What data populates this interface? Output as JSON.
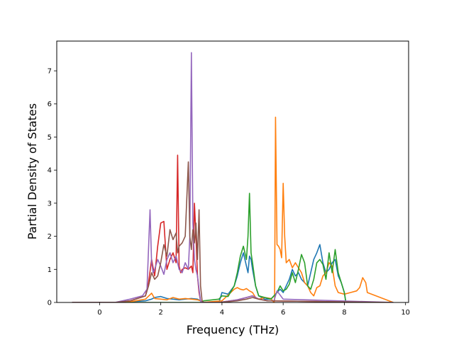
{
  "chart_data": {
    "type": "line",
    "title": "",
    "xlabel": "Frequency (THz)",
    "ylabel": "Partial Density of States",
    "xlim": [
      -1.4,
      10.1
    ],
    "ylim": [
      0,
      7.9
    ],
    "xticks": [
      0,
      2,
      4,
      6,
      8,
      10
    ],
    "yticks": [
      0,
      1,
      2,
      3,
      4,
      5,
      6,
      7
    ],
    "grid": false,
    "legend": "none",
    "series": [
      {
        "color": "#1f77b4",
        "x": [
          -0.9,
          0.5,
          1.0,
          1.5,
          1.7,
          1.8,
          2.0,
          2.2,
          2.4,
          2.6,
          2.8,
          3.0,
          3.2,
          3.3,
          3.35,
          3.9,
          4.0,
          4.2,
          4.4,
          4.5,
          4.6,
          4.7,
          4.8,
          4.85,
          4.9,
          4.95,
          5.0,
          5.1,
          5.2,
          5.4,
          5.6,
          5.7,
          5.8,
          5.9,
          6.0,
          6.1,
          6.2,
          6.3,
          6.4,
          6.5,
          6.6,
          6.7,
          6.8,
          6.9,
          7.0,
          7.1,
          7.2,
          7.3,
          7.4,
          7.5,
          7.6,
          7.7,
          7.8,
          7.9,
          8.0,
          8.05,
          8.1,
          8.5,
          9.6
        ],
        "y": [
          0,
          0,
          0.02,
          0.05,
          0.1,
          0.15,
          0.18,
          0.12,
          0.1,
          0.08,
          0.1,
          0.12,
          0.1,
          0.05,
          0,
          0,
          0.3,
          0.25,
          0.5,
          0.8,
          1.2,
          1.5,
          1.1,
          0.9,
          1.4,
          1.3,
          1.0,
          0.5,
          0.2,
          0.1,
          0.1,
          0.2,
          0.3,
          0.4,
          0.3,
          0.5,
          0.7,
          1.0,
          0.8,
          0.9,
          0.7,
          0.6,
          0.5,
          0.9,
          1.3,
          1.5,
          1.75,
          1.2,
          0.9,
          1.0,
          1.2,
          1.3,
          0.8,
          0.6,
          0.3,
          0,
          0,
          0,
          0
        ]
      },
      {
        "color": "#ff7f0e",
        "x": [
          -0.9,
          0.5,
          1.0,
          1.5,
          1.7,
          1.8,
          2.0,
          2.2,
          2.4,
          2.6,
          2.8,
          3.0,
          3.2,
          3.3,
          3.35,
          4.0,
          4.4,
          4.5,
          4.6,
          4.7,
          4.8,
          4.9,
          5.0,
          5.1,
          5.2,
          5.4,
          5.6,
          5.7,
          5.72,
          5.75,
          5.8,
          5.85,
          5.9,
          5.95,
          6.0,
          6.05,
          6.1,
          6.2,
          6.3,
          6.4,
          6.5,
          6.6,
          6.7,
          6.8,
          6.9,
          7.0,
          7.1,
          7.2,
          7.3,
          7.4,
          7.5,
          7.6,
          7.7,
          7.8,
          8.0,
          8.2,
          8.4,
          8.5,
          8.6,
          8.7,
          8.75,
          9.6
        ],
        "y": [
          0,
          0,
          0.02,
          0.1,
          0.28,
          0.12,
          0.1,
          0.08,
          0.15,
          0.1,
          0.12,
          0.1,
          0.08,
          0.05,
          0,
          0.05,
          0.4,
          0.45,
          0.4,
          0.38,
          0.42,
          0.35,
          0.3,
          0.15,
          0.1,
          0.15,
          0.12,
          0,
          0.05,
          5.6,
          1.75,
          1.7,
          1.6,
          1.35,
          3.6,
          2.0,
          1.2,
          1.3,
          1.05,
          1.2,
          1.05,
          0.9,
          0.6,
          0.5,
          0.3,
          0.2,
          0.45,
          0.5,
          0.8,
          0.9,
          1.2,
          1.1,
          0.5,
          0.3,
          0.25,
          0.3,
          0.35,
          0.45,
          0.75,
          0.6,
          0.3,
          0
        ]
      },
      {
        "color": "#2ca02c",
        "x": [
          -0.9,
          3.3,
          3.4,
          3.9,
          4.0,
          4.2,
          4.4,
          4.5,
          4.6,
          4.7,
          4.8,
          4.85,
          4.9,
          4.95,
          5.0,
          5.1,
          5.2,
          5.4,
          5.6,
          5.7,
          5.8,
          5.9,
          6.0,
          6.1,
          6.2,
          6.3,
          6.4,
          6.5,
          6.6,
          6.7,
          6.8,
          6.9,
          7.0,
          7.1,
          7.2,
          7.3,
          7.4,
          7.5,
          7.6,
          7.7,
          7.8,
          7.9,
          8.0,
          8.05,
          8.1,
          9.6
        ],
        "y": [
          0,
          0,
          0.05,
          0.1,
          0.2,
          0.18,
          0.5,
          0.9,
          1.4,
          1.7,
          1.3,
          2.0,
          3.3,
          1.5,
          1.2,
          0.5,
          0.2,
          0.15,
          0.1,
          0.2,
          0.3,
          0.5,
          0.35,
          0.4,
          0.55,
          0.9,
          0.6,
          1.0,
          1.45,
          1.2,
          0.5,
          0.4,
          0.7,
          1.2,
          1.3,
          1.15,
          0.7,
          1.5,
          0.9,
          1.6,
          0.9,
          0.6,
          0.3,
          0,
          0,
          0
        ]
      },
      {
        "color": "#d62728",
        "x": [
          -0.9,
          0.5,
          1.0,
          1.5,
          1.6,
          1.7,
          1.8,
          1.9,
          2.0,
          2.1,
          2.2,
          2.3,
          2.4,
          2.5,
          2.55,
          2.6,
          2.65,
          2.7,
          2.8,
          2.9,
          3.0,
          3.05,
          3.1,
          3.15,
          3.2,
          3.25,
          3.3,
          3.35,
          3.4,
          3.9,
          4.5,
          4.8,
          5.0,
          5.2,
          5.5,
          9.6
        ],
        "y": [
          0,
          0,
          0.05,
          0.2,
          0.6,
          1.3,
          0.8,
          1.7,
          2.4,
          2.45,
          1.0,
          1.3,
          1.5,
          1.2,
          4.45,
          1.1,
          0.9,
          1.0,
          1.05,
          1.0,
          1.1,
          0.9,
          3.0,
          2.0,
          0.8,
          0.3,
          0.05,
          0,
          0,
          0,
          0.08,
          0.15,
          0.2,
          0.1,
          0.05,
          0
        ]
      },
      {
        "color": "#9467bd",
        "x": [
          -0.9,
          0.5,
          1.0,
          1.4,
          1.55,
          1.65,
          1.7,
          1.75,
          1.8,
          1.9,
          2.0,
          2.1,
          2.2,
          2.3,
          2.4,
          2.5,
          2.6,
          2.7,
          2.8,
          2.9,
          2.95,
          3.0,
          3.05,
          3.1,
          3.15,
          3.2,
          3.25,
          3.3,
          3.35,
          3.4,
          3.9,
          4.5,
          4.8,
          5.0,
          5.2,
          5.5,
          5.7,
          5.8,
          6.0,
          9.6
        ],
        "y": [
          0,
          0,
          0.1,
          0.2,
          0.4,
          2.8,
          1.2,
          0.9,
          1.0,
          1.3,
          1.1,
          0.85,
          1.3,
          1.5,
          1.2,
          1.4,
          1.0,
          0.9,
          1.2,
          1.0,
          2.0,
          7.55,
          2.4,
          1.3,
          1.0,
          0.8,
          0.4,
          0.05,
          0,
          0,
          0,
          0.08,
          0.15,
          0.2,
          0.1,
          0.05,
          0.05,
          0.35,
          0.1,
          0
        ]
      },
      {
        "color": "#8c564b",
        "x": [
          -0.9,
          0.5,
          1.0,
          1.5,
          1.6,
          1.7,
          1.8,
          1.9,
          2.0,
          2.1,
          2.2,
          2.3,
          2.4,
          2.5,
          2.55,
          2.6,
          2.7,
          2.8,
          2.9,
          2.95,
          3.0,
          3.05,
          3.1,
          3.15,
          3.2,
          3.25,
          3.3,
          3.35,
          3.4,
          3.9,
          4.5,
          4.8,
          5.0,
          5.2,
          5.5,
          9.6
        ],
        "y": [
          0,
          0,
          0.05,
          0.2,
          0.5,
          0.9,
          0.7,
          0.8,
          1.2,
          1.75,
          1.4,
          2.2,
          1.9,
          2.1,
          1.5,
          1.7,
          1.8,
          2.0,
          4.25,
          2.0,
          1.6,
          2.2,
          1.8,
          2.4,
          1.3,
          2.8,
          0.5,
          0.05,
          0,
          0,
          0.05,
          0.1,
          0.15,
          0.1,
          0.05,
          0
        ]
      }
    ]
  }
}
